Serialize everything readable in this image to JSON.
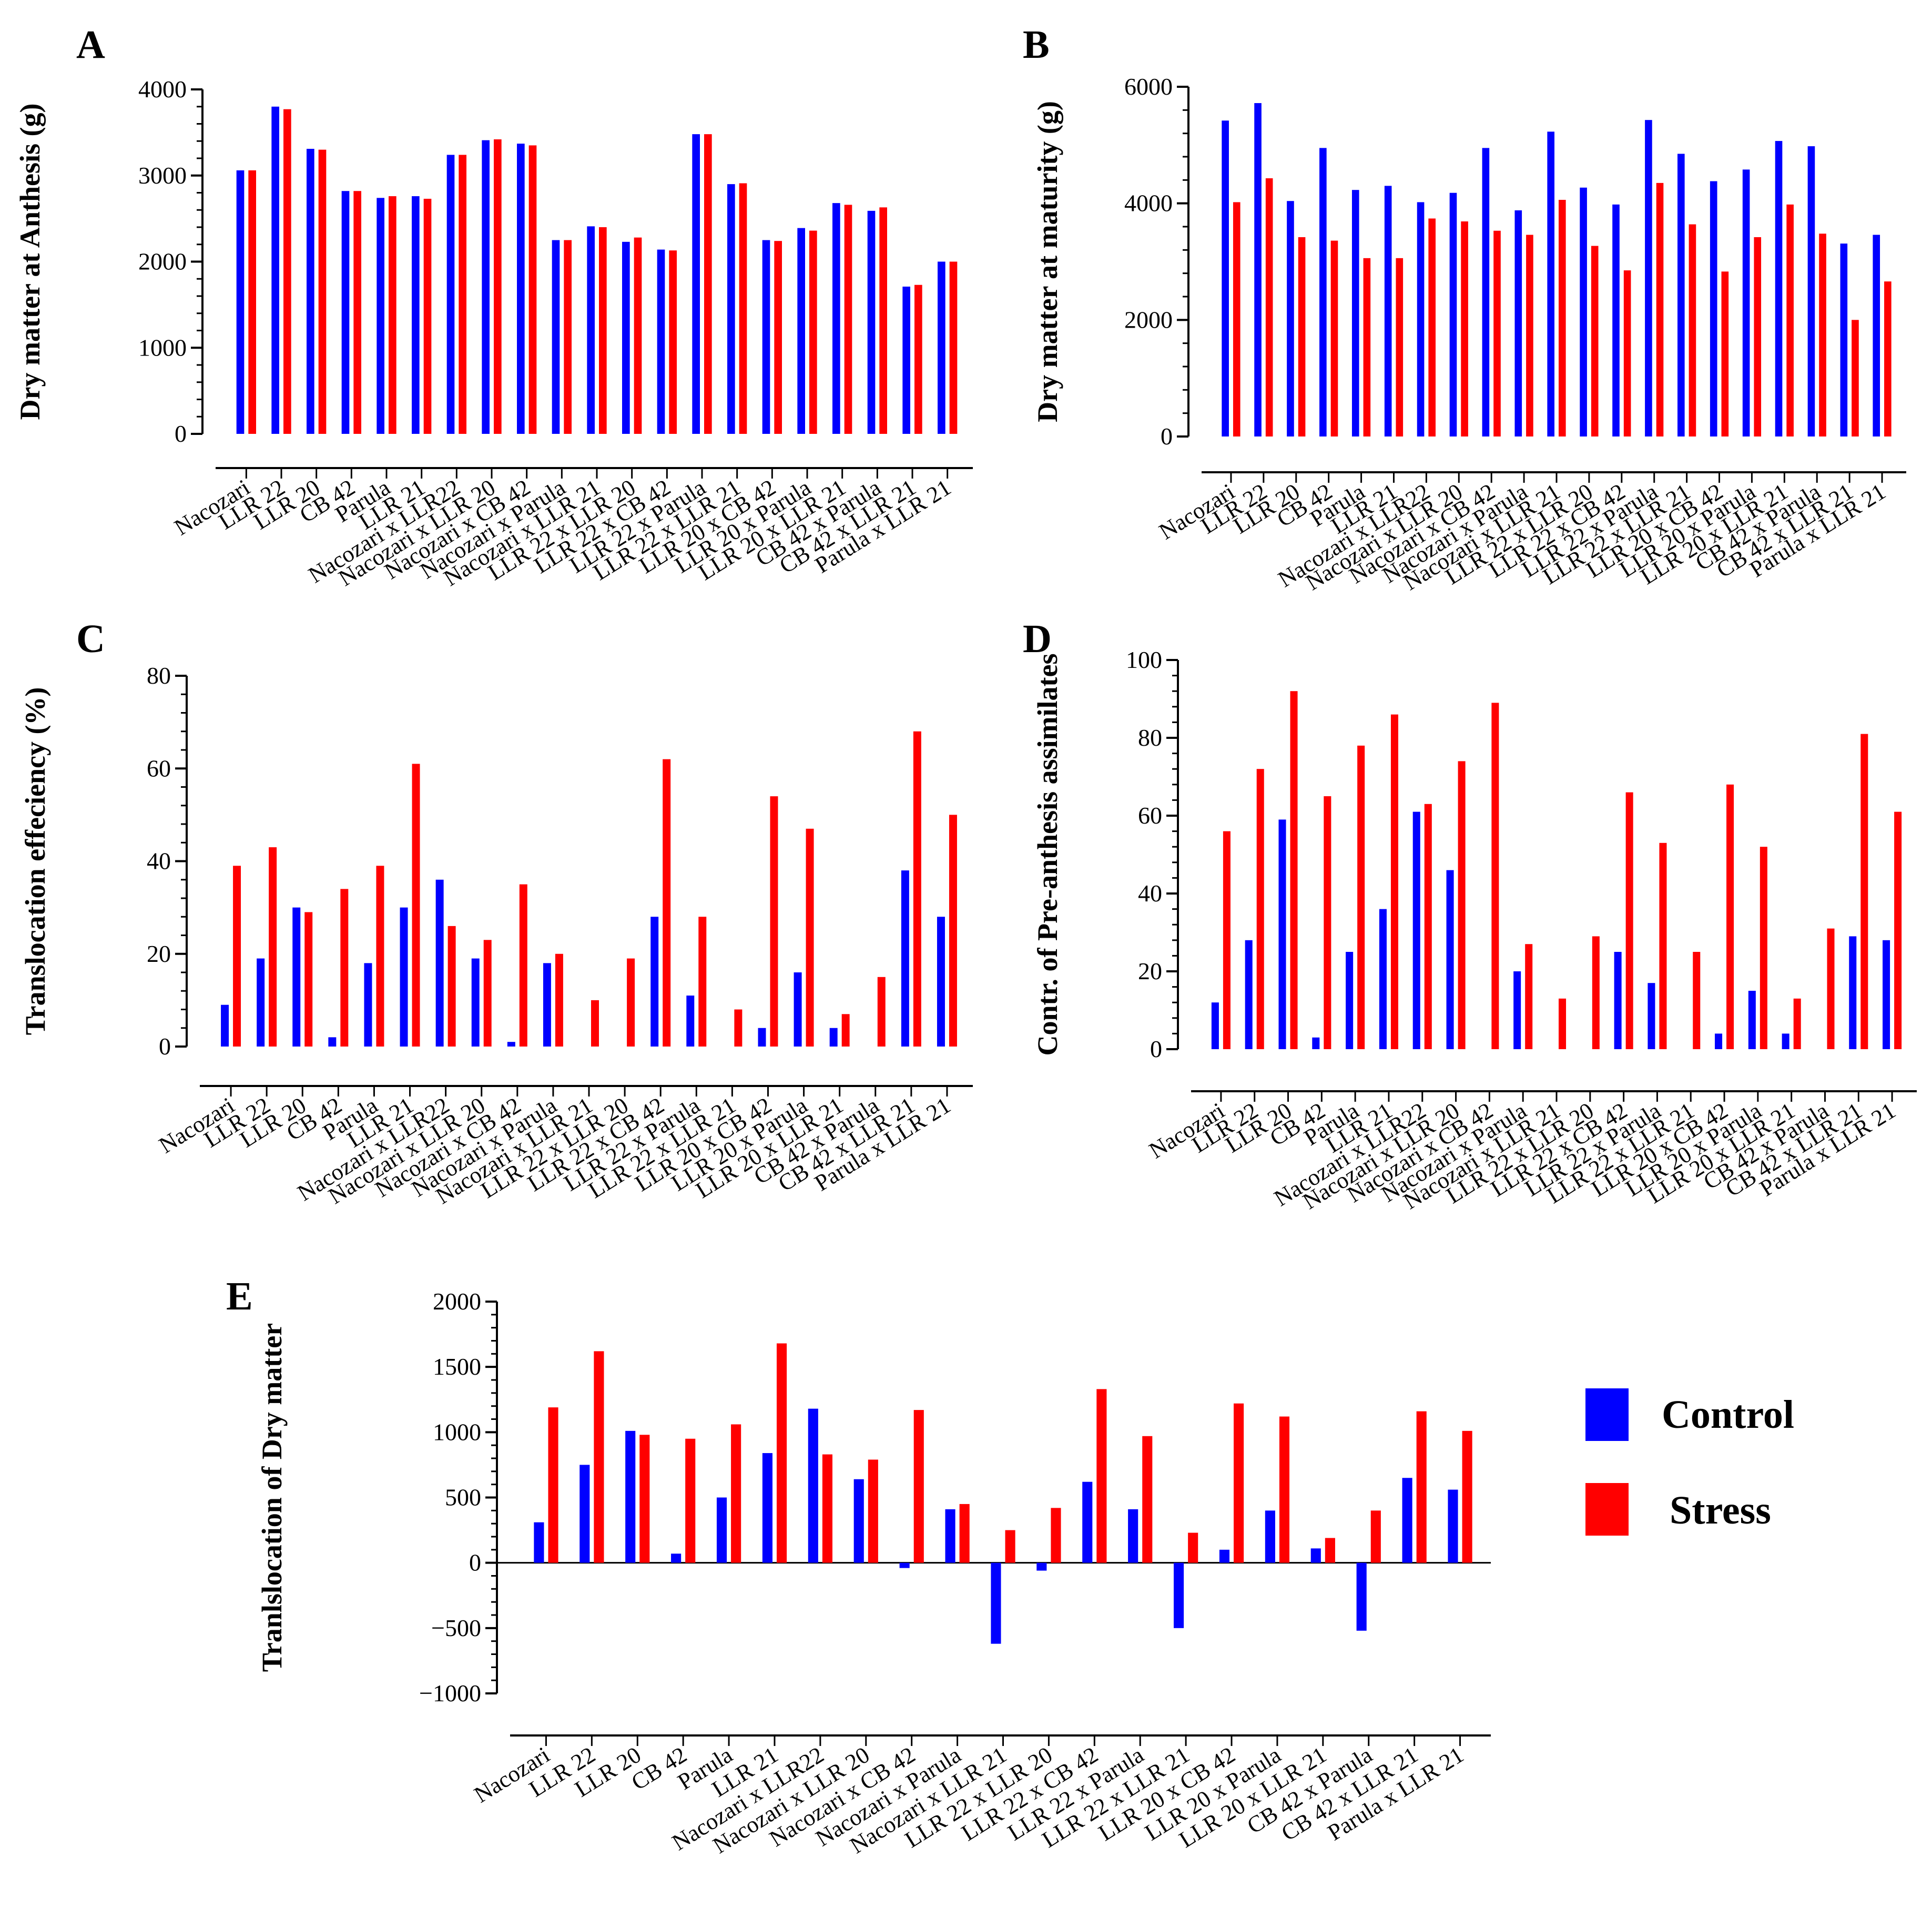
{
  "colors": {
    "control": "#0000FF",
    "stress": "#FF0000",
    "axis": "#000000"
  },
  "legend": {
    "items": [
      {
        "name": "Control",
        "color": "#0000FF"
      },
      {
        "name": "Stress",
        "color": "#FF0000"
      }
    ]
  },
  "chart_data": [
    {
      "panel": "A",
      "type": "bar",
      "ylabel": "Dry matter at Anthesis (g)",
      "ylim": [
        0,
        4000
      ],
      "yticks": [
        0,
        1000,
        2000,
        3000,
        4000
      ],
      "categories": [
        "Nacozari",
        "LLR 22",
        "LLR 20",
        "CB 42",
        "Parula",
        "LLR 21",
        "Nacozari x LLR22",
        "Nacozari x LLR 20",
        "Nacozari x CB 42",
        "Nacozari x Parula",
        "Nacozari x LLR 21",
        "LLR 22 x LLR 20",
        "LLR 22 x CB 42",
        "LLR 22 x Parula",
        "LLR 22 x LLR 21",
        "LLR 20 x CB 42",
        "LLR 20 x Parula",
        "LLR 20 x LLR 21",
        "CB 42 x Parula",
        "CB 42 x LLR 21",
        "Parula x LLR 21"
      ],
      "series": [
        {
          "name": "Control",
          "values": [
            3060,
            3800,
            3310,
            2820,
            2740,
            2760,
            3240,
            3410,
            3370,
            2250,
            2410,
            2230,
            2140,
            3480,
            2900,
            2250,
            2390,
            2680,
            2590,
            1710,
            2000
          ]
        },
        {
          "name": "Stress",
          "values": [
            3060,
            3770,
            3300,
            2820,
            2760,
            2730,
            3240,
            3420,
            3350,
            2250,
            2400,
            2280,
            2130,
            3480,
            2910,
            2240,
            2360,
            2660,
            2630,
            1730,
            2000
          ]
        }
      ]
    },
    {
      "panel": "B",
      "type": "bar",
      "ylabel": "Dry matter at maturity (g)",
      "ylim": [
        0,
        6000
      ],
      "yticks": [
        0,
        2000,
        4000,
        6000
      ],
      "categories": [
        "Nacozari",
        "LLR 22",
        "LLR 20",
        "CB 42",
        "Parula",
        "LLR 21",
        "Nacozari x LLR22",
        "Nacozari x LLR 20",
        "Nacozari x CB 42",
        "Nacozari x Parula",
        "Nacozari x LLR 21",
        "LLR 22 x LLR 20",
        "LLR 22 x CB 42",
        "LLR 22 x Parula",
        "LLR 22 x LLR 21",
        "LLR 20 x CB 42",
        "LLR 20 x Parula",
        "LLR 20 x LLR 21",
        "CB 42 x Parula",
        "CB 42 x LLR 21",
        "Parula x LLR 21"
      ],
      "series": [
        {
          "name": "Control",
          "values": [
            5420,
            5720,
            4040,
            4950,
            4230,
            4300,
            4020,
            4180,
            4950,
            3880,
            5230,
            4270,
            3980,
            5430,
            4850,
            4380,
            4580,
            5070,
            4980,
            3310,
            3460
          ]
        },
        {
          "name": "Stress",
          "values": [
            4020,
            4430,
            3420,
            3360,
            3060,
            3060,
            3740,
            3690,
            3530,
            3460,
            4060,
            3270,
            2850,
            4350,
            3640,
            2830,
            3420,
            3980,
            3480,
            2000,
            2660
          ]
        }
      ]
    },
    {
      "panel": "C",
      "type": "bar",
      "ylabel": "Translocation effeciency (%)",
      "ylim": [
        0,
        80
      ],
      "yticks": [
        0,
        20,
        40,
        60,
        80
      ],
      "categories": [
        "Nacozari",
        "LLR 22",
        "LLR 20",
        "CB 42",
        "Parula",
        "LLR 21",
        "Nacozari x LLR22",
        "Nacozari x LLR 20",
        "Nacozari x CB 42",
        "Nacozari x Parula",
        "Nacozari x LLR 21",
        "LLR 22 x LLR 20",
        "LLR 22 x CB 42",
        "LLR 22 x Parula",
        "LLR 22 x LLR 21",
        "LLR 20 x CB 42",
        "LLR 20 x Parula",
        "LLR 20 x LLR 21",
        "CB 42 x Parula",
        "CB 42 x LLR 21",
        "Parula x LLR 21"
      ],
      "series": [
        {
          "name": "Control",
          "values": [
            9,
            19,
            30,
            2,
            18,
            30,
            36,
            19,
            1,
            18,
            0,
            0,
            28,
            11,
            0,
            4,
            16,
            4,
            0,
            38,
            28
          ]
        },
        {
          "name": "Stress",
          "values": [
            39,
            43,
            29,
            34,
            39,
            61,
            26,
            23,
            35,
            20,
            10,
            19,
            62,
            28,
            8,
            54,
            47,
            7,
            15,
            68,
            50
          ]
        }
      ]
    },
    {
      "panel": "D",
      "type": "bar",
      "ylabel": "Contr. of Pre-anthesis assimilates",
      "ylim": [
        0,
        100
      ],
      "yticks": [
        0,
        20,
        40,
        60,
        80,
        100
      ],
      "categories": [
        "Nacozari",
        "LLR 22",
        "LLR 20",
        "CB 42",
        "Parula",
        "LLR 21",
        "Nacozari x LLR22",
        "Nacozari x LLR 20",
        "Nacozari x CB 42",
        "Nacozari x Parula",
        "Nacozari x LLR 21",
        "LLR 22 x LLR 20",
        "LLR 22 x CB 42",
        "LLR 22 x Parula",
        "LLR 22 x LLR 21",
        "LLR 20 x CB 42",
        "LLR 20 x Parula",
        "LLR 20 x LLR 21",
        "CB 42 x Parula",
        "CB 42 x LLR 21",
        "Parula x LLR 21"
      ],
      "series": [
        {
          "name": "Control",
          "values": [
            12,
            28,
            59,
            3,
            25,
            36,
            61,
            46,
            0,
            20,
            0,
            0,
            25,
            17,
            0,
            4,
            15,
            4,
            0,
            29,
            28
          ]
        },
        {
          "name": "Stress",
          "values": [
            56,
            72,
            92,
            65,
            78,
            86,
            63,
            74,
            89,
            27,
            13,
            29,
            66,
            53,
            25,
            68,
            52,
            13,
            31,
            81,
            61
          ]
        }
      ]
    },
    {
      "panel": "E",
      "type": "bar",
      "ylabel": "Tranlslocation of Dry matter",
      "ylim": [
        -1000,
        2000
      ],
      "yticks": [
        -1000,
        -500,
        0,
        500,
        1000,
        1500,
        2000
      ],
      "categories": [
        "Nacozari",
        "LLR 22",
        "LLR 20",
        "CB 42",
        "Parula",
        "LLR 21",
        "Nacozari x LLR22",
        "Nacozari x LLR 20",
        "Nacozari x CB 42",
        "Nacozari x Parula",
        "Nacozari x LLR 21",
        "LLR 22 x LLR 20",
        "LLR 22 x CB 42",
        "LLR 22 x Parula",
        "LLR 22 x LLR 21",
        "LLR 20 x CB 42",
        "LLR 20 x Parula",
        "LLR 20 x LLR 21",
        "CB 42 x Parula",
        "CB 42 x LLR 21",
        "Parula x LLR 21"
      ],
      "series": [
        {
          "name": "Control",
          "values": [
            310,
            750,
            1010,
            70,
            500,
            840,
            1180,
            640,
            -40,
            410,
            -620,
            -60,
            620,
            410,
            -500,
            100,
            400,
            110,
            -520,
            650,
            560
          ]
        },
        {
          "name": "Stress",
          "values": [
            1190,
            1620,
            980,
            950,
            1060,
            1680,
            830,
            790,
            1170,
            450,
            250,
            420,
            1330,
            970,
            230,
            1220,
            1120,
            190,
            400,
            1160,
            1010
          ]
        }
      ]
    }
  ]
}
